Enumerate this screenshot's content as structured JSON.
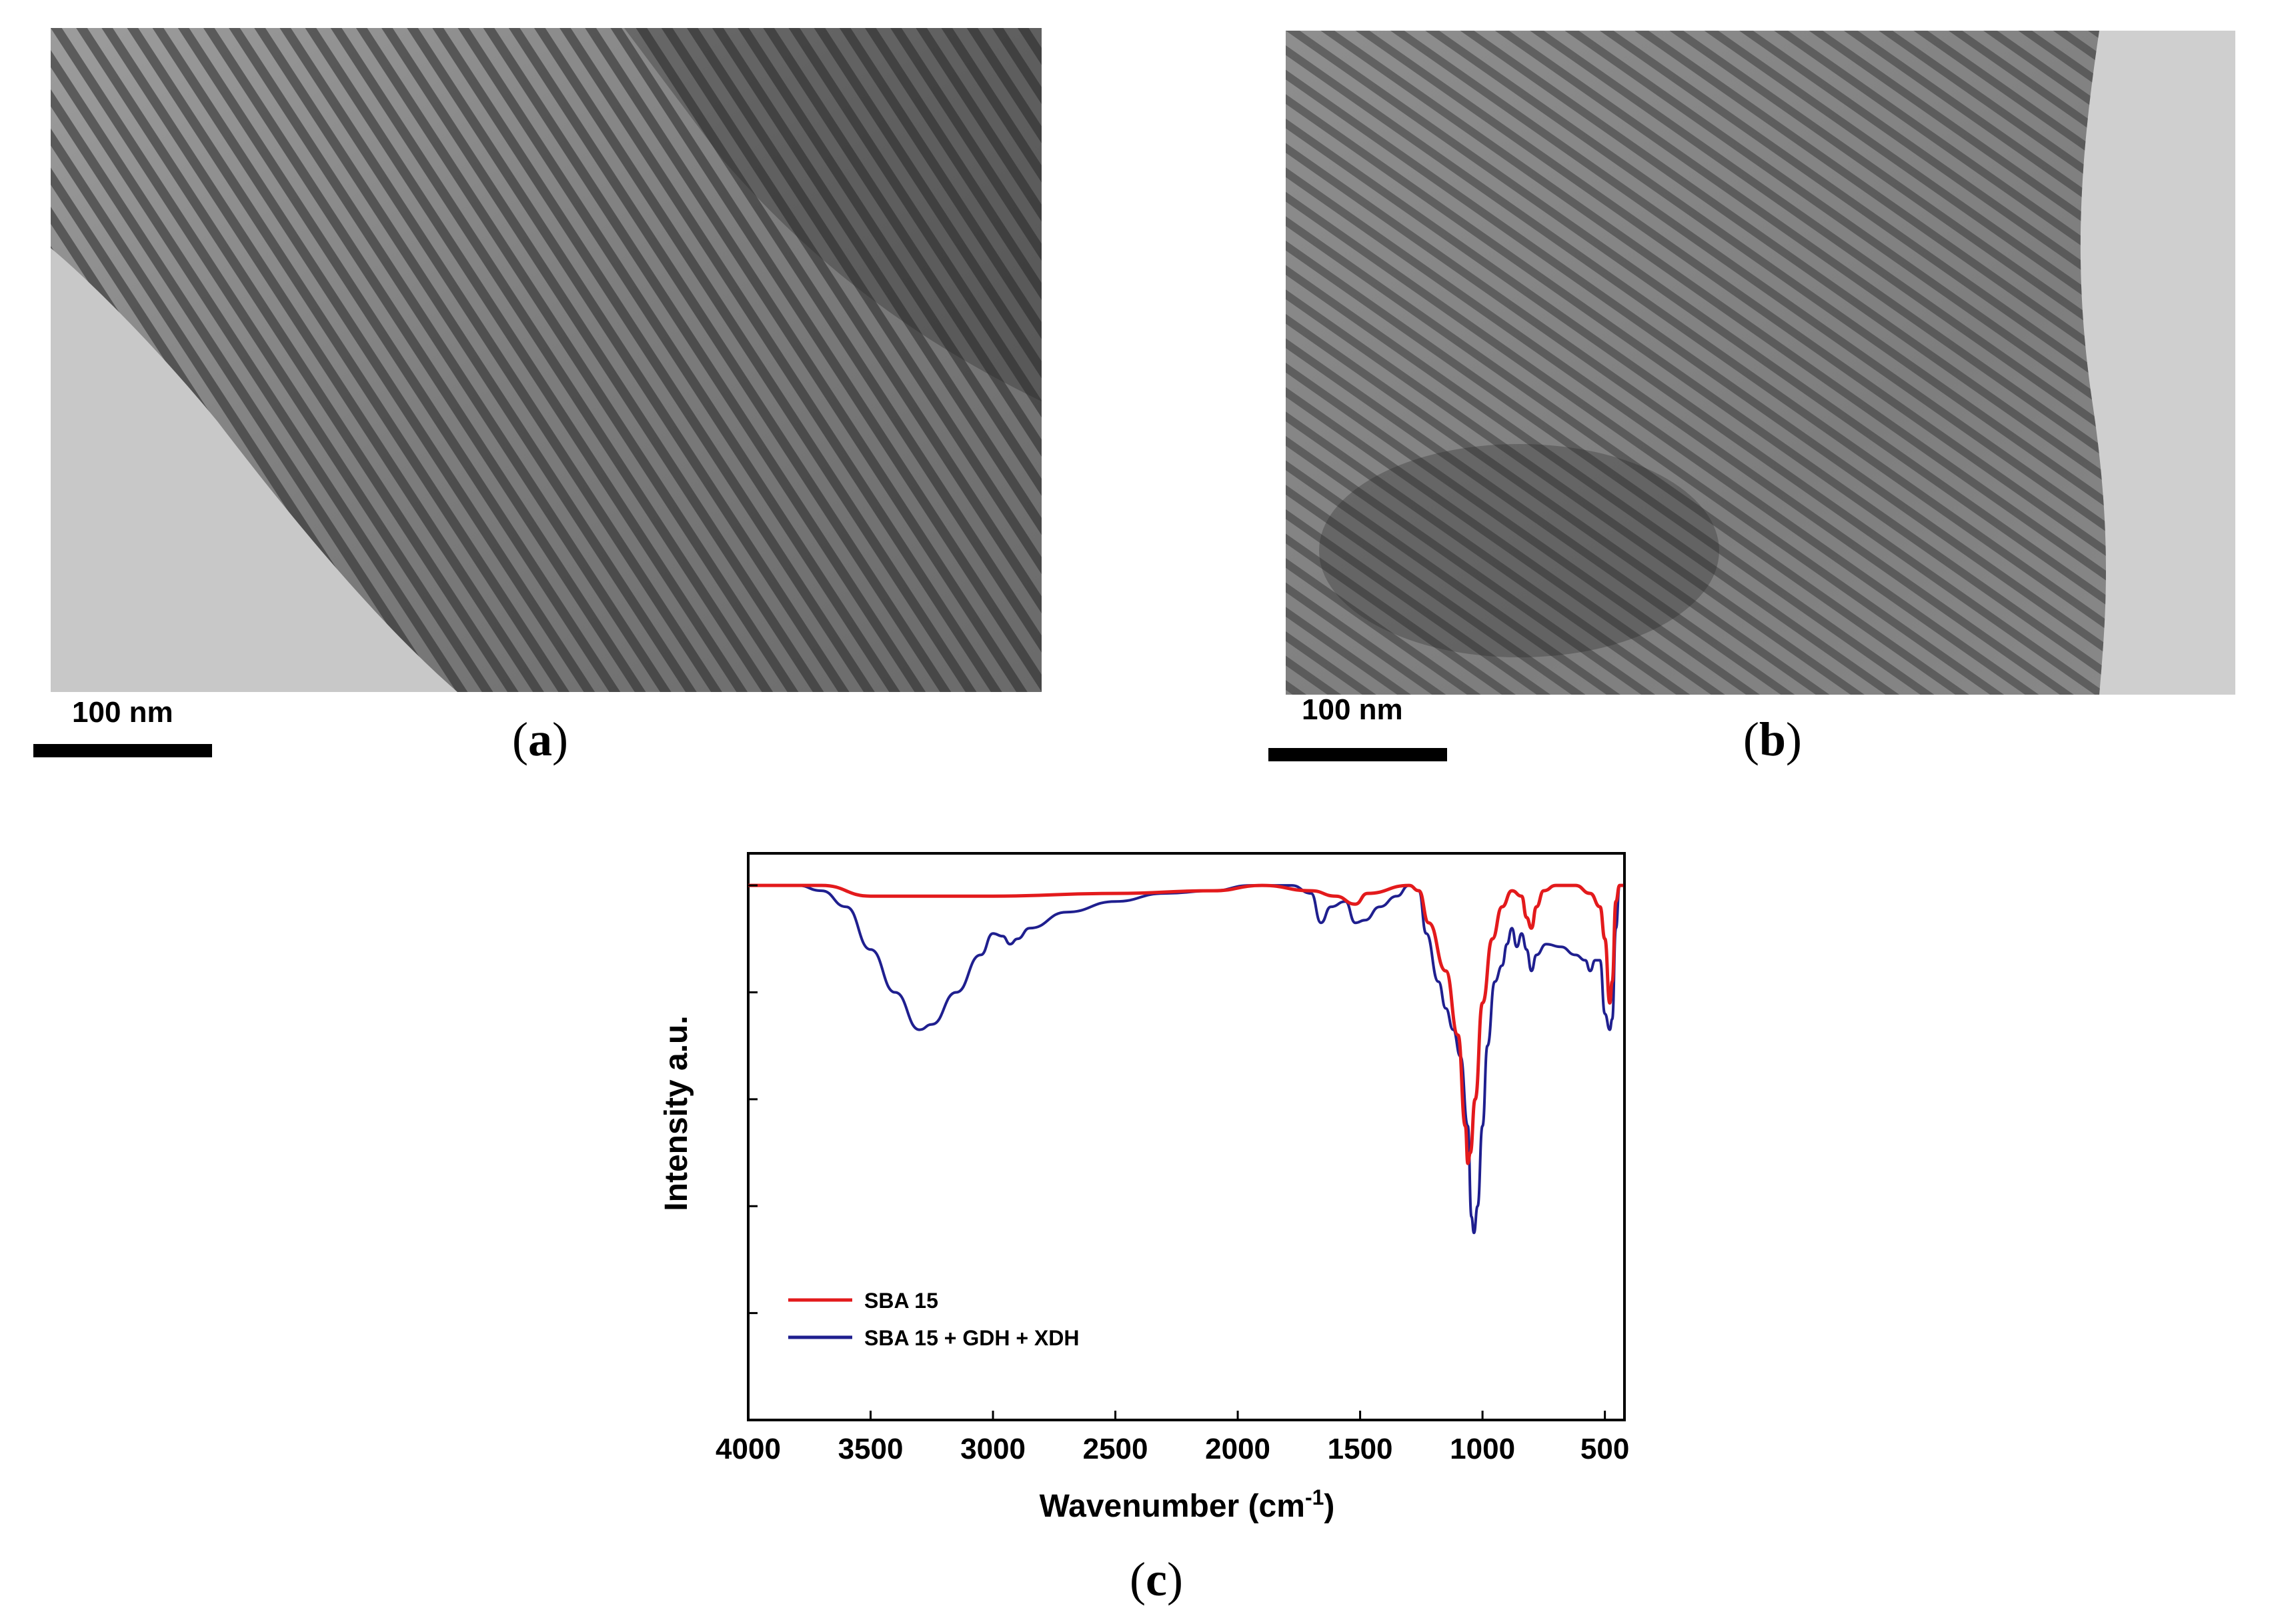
{
  "panels": [
    {
      "id": "a",
      "label_open": "(",
      "letter": "a",
      "label_close": ")",
      "scale_label": "100 nm"
    },
    {
      "id": "b",
      "label_open": "(",
      "letter": "b",
      "label_close": ")",
      "scale_label": "100 nm"
    },
    {
      "id": "c",
      "label_open": "(",
      "letter": "c",
      "label_close": ")"
    }
  ],
  "chart_data": {
    "type": "line",
    "title": "",
    "xlabel": "Wavenumber (cm",
    "xlabel_sup": "-1",
    "xlabel_close": ")",
    "ylabel": "Intensity a.u.",
    "xlim": [
      4000,
      420
    ],
    "x_reversed": true,
    "ylim": [
      0,
      1.06
    ],
    "xticks": [
      4000,
      3500,
      3000,
      2500,
      2000,
      1500,
      1000,
      500
    ],
    "xtick_labels": [
      "4000",
      "3500",
      "3000",
      "2500",
      "2000",
      "1500",
      "1000",
      "500"
    ],
    "yticks": [
      0.2,
      0.4,
      0.6,
      0.8,
      1.0
    ],
    "grid": false,
    "legend_position": "bottom-left",
    "series": [
      {
        "name": "SBA 15",
        "color": "#e31a1c",
        "points": [
          [
            4000,
            1.0
          ],
          [
            3700,
            1.0
          ],
          [
            3500,
            0.98
          ],
          [
            3000,
            0.98
          ],
          [
            2500,
            0.985
          ],
          [
            2100,
            0.99
          ],
          [
            1900,
            1.0
          ],
          [
            1700,
            0.99
          ],
          [
            1600,
            0.98
          ],
          [
            1520,
            0.965
          ],
          [
            1470,
            0.985
          ],
          [
            1300,
            1.0
          ],
          [
            1260,
            0.99
          ],
          [
            1220,
            0.93
          ],
          [
            1150,
            0.84
          ],
          [
            1100,
            0.72
          ],
          [
            1070,
            0.55
          ],
          [
            1060,
            0.48
          ],
          [
            1050,
            0.5
          ],
          [
            1030,
            0.6
          ],
          [
            1000,
            0.78
          ],
          [
            960,
            0.9
          ],
          [
            920,
            0.96
          ],
          [
            880,
            0.99
          ],
          [
            840,
            0.98
          ],
          [
            820,
            0.94
          ],
          [
            800,
            0.92
          ],
          [
            780,
            0.96
          ],
          [
            750,
            0.99
          ],
          [
            700,
            1.0
          ],
          [
            620,
            1.0
          ],
          [
            560,
            0.985
          ],
          [
            520,
            0.96
          ],
          [
            500,
            0.9
          ],
          [
            480,
            0.78
          ],
          [
            470,
            0.82
          ],
          [
            455,
            0.97
          ],
          [
            440,
            1.0
          ],
          [
            425,
            1.0
          ]
        ]
      },
      {
        "name": "SBA 15 + GDH + XDH",
        "color": "#1f1f8f",
        "points": [
          [
            4000,
            1.0
          ],
          [
            3800,
            1.0
          ],
          [
            3700,
            0.99
          ],
          [
            3600,
            0.96
          ],
          [
            3500,
            0.88
          ],
          [
            3400,
            0.8
          ],
          [
            3300,
            0.73
          ],
          [
            3250,
            0.74
          ],
          [
            3150,
            0.8
          ],
          [
            3050,
            0.87
          ],
          [
            3000,
            0.91
          ],
          [
            2960,
            0.905
          ],
          [
            2930,
            0.89
          ],
          [
            2900,
            0.9
          ],
          [
            2850,
            0.92
          ],
          [
            2700,
            0.95
          ],
          [
            2500,
            0.97
          ],
          [
            2300,
            0.985
          ],
          [
            2100,
            0.99
          ],
          [
            1950,
            1.0
          ],
          [
            1780,
            1.0
          ],
          [
            1700,
            0.985
          ],
          [
            1660,
            0.93
          ],
          [
            1620,
            0.96
          ],
          [
            1560,
            0.97
          ],
          [
            1520,
            0.93
          ],
          [
            1480,
            0.935
          ],
          [
            1420,
            0.96
          ],
          [
            1350,
            0.98
          ],
          [
            1300,
            1.0
          ],
          [
            1260,
            0.99
          ],
          [
            1230,
            0.91
          ],
          [
            1180,
            0.82
          ],
          [
            1150,
            0.77
          ],
          [
            1120,
            0.73
          ],
          [
            1090,
            0.68
          ],
          [
            1060,
            0.55
          ],
          [
            1045,
            0.38
          ],
          [
            1035,
            0.35
          ],
          [
            1020,
            0.4
          ],
          [
            1000,
            0.55
          ],
          [
            980,
            0.7
          ],
          [
            950,
            0.82
          ],
          [
            920,
            0.85
          ],
          [
            900,
            0.89
          ],
          [
            880,
            0.92
          ],
          [
            860,
            0.885
          ],
          [
            840,
            0.91
          ],
          [
            820,
            0.88
          ],
          [
            800,
            0.84
          ],
          [
            780,
            0.87
          ],
          [
            740,
            0.89
          ],
          [
            680,
            0.885
          ],
          [
            620,
            0.87
          ],
          [
            580,
            0.86
          ],
          [
            560,
            0.84
          ],
          [
            540,
            0.86
          ],
          [
            520,
            0.86
          ],
          [
            500,
            0.76
          ],
          [
            480,
            0.73
          ],
          [
            470,
            0.75
          ],
          [
            455,
            0.92
          ],
          [
            440,
            1.0
          ],
          [
            425,
            1.0
          ]
        ]
      }
    ]
  }
}
